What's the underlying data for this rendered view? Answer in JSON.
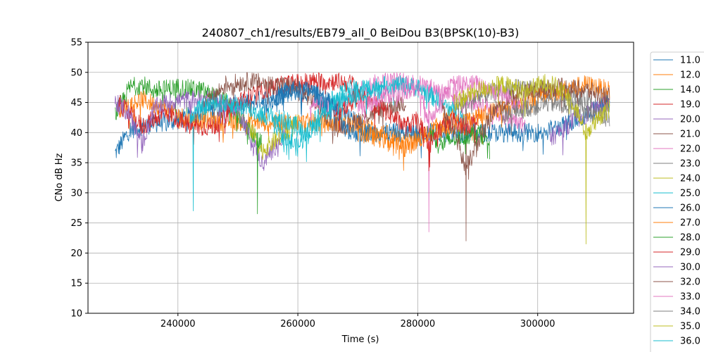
{
  "chart_data": {
    "type": "line",
    "title": "240807_ch1/results/EB79_all_0 BeiDou B3(BPSK(10)-B3)",
    "xlabel": "Time (s)",
    "ylabel": "CNo dB Hz",
    "xlim": [
      225000,
      316000
    ],
    "ylim": [
      10,
      55
    ],
    "x_ticks": [
      240000,
      260000,
      280000,
      300000
    ],
    "x_tick_labels": [
      "240000",
      "260000",
      "280000",
      "300000"
    ],
    "y_ticks": [
      10,
      15,
      20,
      25,
      30,
      35,
      40,
      45,
      50,
      55
    ],
    "y_tick_labels": [
      "10",
      "15",
      "20",
      "25",
      "30",
      "35",
      "40",
      "45",
      "50",
      "55"
    ],
    "grid": true,
    "legend_position": "right, outside plot",
    "series": [
      {
        "name": "11.0",
        "color": "#1f77b4",
        "x": [
          229500,
          232000,
          236000,
          240000,
          244000,
          248000,
          252000,
          256000,
          260000,
          264000,
          268000,
          272000
        ],
        "y": [
          36.5,
          40.5,
          41.5,
          42,
          43.5,
          44.5,
          45,
          46,
          47,
          46,
          43,
          40
        ]
      },
      {
        "name": "12.0",
        "color": "#ff7f0e",
        "x": [
          230000,
          234000,
          238000,
          242000,
          270000,
          274000,
          278000,
          282000,
          286000
        ],
        "y": [
          44,
          45.5,
          44,
          42,
          41.5,
          40,
          38.5,
          40,
          43
        ]
      },
      {
        "name": "14.0",
        "color": "#2ca02c",
        "x": [
          229500,
          232000,
          234000,
          236000,
          240000,
          244000,
          248000,
          250000,
          252000,
          254000
        ],
        "y": [
          43,
          47.5,
          48,
          47,
          47.5,
          47,
          45,
          43,
          40,
          38
        ]
      },
      {
        "name": "19.0",
        "color": "#d62728",
        "x": [
          230000,
          234000,
          238000,
          242000,
          246000,
          250000,
          254000,
          258000,
          262000,
          266000,
          270000
        ],
        "y": [
          45,
          41,
          43.5,
          41,
          41,
          45,
          47,
          48,
          48.5,
          48.5,
          48
        ]
      },
      {
        "name": "20.0",
        "color": "#9467bd",
        "x": [
          229500,
          232000,
          234000,
          236000,
          238000,
          242000,
          246000,
          250000,
          254000,
          258000
        ],
        "y": [
          45,
          43,
          38,
          44,
          45,
          45.5,
          45.5,
          44,
          35,
          40
        ]
      },
      {
        "name": "21.0",
        "color": "#8c564b",
        "x": [
          244000,
          248000,
          252000,
          256000,
          260000,
          264000,
          266000,
          270000,
          274000,
          278000
        ],
        "y": [
          44,
          48,
          48.5,
          48,
          47.5,
          44,
          41,
          42,
          44,
          45
        ]
      },
      {
        "name": "22.0",
        "color": "#e377c2",
        "x": [
          262000,
          266000,
          270000,
          274000,
          278000,
          282000,
          286000,
          290000,
          294000,
          298000
        ],
        "y": [
          45,
          44,
          47,
          48.5,
          48.5,
          47.5,
          46,
          45,
          43,
          41
        ]
      },
      {
        "name": "23.0",
        "color": "#7f7f7f",
        "x": [
          286000,
          290000,
          294000,
          298000,
          302000,
          306000,
          310000,
          312000
        ],
        "y": [
          44,
          46,
          47,
          47.5,
          47,
          46,
          45,
          44
        ]
      },
      {
        "name": "24.0",
        "color": "#bcbd22",
        "x": [
          252000,
          254000,
          256000,
          258000,
          260000
        ],
        "y": [
          41,
          37,
          38.5,
          40,
          41.5
        ]
      },
      {
        "name": "25.0",
        "color": "#17becf",
        "x": [
          256000,
          258000,
          260000,
          264000,
          268000,
          272000,
          276000,
          280000,
          284000,
          288000
        ],
        "y": [
          41,
          39,
          37.5,
          44,
          47,
          47.5,
          48,
          47.5,
          45,
          42
        ]
      },
      {
        "name": "26.0",
        "color": "#1f77b4",
        "x": [
          254000,
          258000,
          262000,
          266000,
          268000,
          300000,
          304000,
          308000,
          312000
        ],
        "y": [
          44,
          47,
          47,
          44.5,
          40,
          40,
          41,
          43,
          45
        ]
      },
      {
        "name": "27.0",
        "color": "#ff7f0e",
        "x": [
          270000,
          274000,
          278000,
          282000,
          300000,
          304000,
          308000,
          312000
        ],
        "y": [
          40,
          39,
          37.5,
          40,
          46,
          47,
          48,
          47
        ]
      },
      {
        "name": "28.0",
        "color": "#2ca02c",
        "x": [
          282000,
          284000,
          286000,
          290000,
          292000
        ],
        "y": [
          40,
          38,
          39,
          40,
          39
        ]
      },
      {
        "name": "29.0",
        "color": "#d62728",
        "x": [
          266000,
          270000,
          274000,
          278000,
          280000,
          282000,
          284000,
          286000,
          288000,
          290000
        ],
        "y": [
          43,
          46,
          44,
          41,
          42,
          38,
          41,
          42,
          41,
          42
        ]
      },
      {
        "name": "30.0",
        "color": "#9467bd",
        "x": [
          302000,
          306000,
          310000,
          312000
        ],
        "y": [
          39,
          42,
          44,
          45
        ]
      },
      {
        "name": "32.0",
        "color": "#8c564b",
        "x": [
          284000,
          286000,
          288000,
          290000,
          292000,
          296000,
          300000,
          304000,
          308000,
          312000
        ],
        "y": [
          44,
          41,
          34,
          38,
          43,
          46,
          47,
          47.5,
          47,
          46
        ]
      },
      {
        "name": "33.0",
        "color": "#e377c2",
        "x": [
          270000,
          274000,
          278000,
          280000,
          282000,
          284000,
          286000,
          290000,
          294000,
          298000
        ],
        "y": [
          44,
          46,
          47,
          47.5,
          42,
          46,
          48,
          48,
          46.5,
          44
        ]
      },
      {
        "name": "34.0",
        "color": "#7f7f7f",
        "x": [
          294000,
          298000,
          302000,
          306000,
          310000,
          312000
        ],
        "y": [
          43,
          44,
          45,
          44,
          43,
          42
        ]
      },
      {
        "name": "35.0",
        "color": "#bcbd22",
        "x": [
          286000,
          290000,
          294000,
          298000,
          302000,
          306000,
          308000,
          310000,
          312000
        ],
        "y": [
          45,
          47,
          48,
          47,
          48.5,
          45,
          40,
          42,
          44
        ]
      },
      {
        "name": "36.0",
        "color": "#17becf",
        "x": [
          242000,
          244000,
          246000,
          250000,
          254000,
          258000,
          262000,
          266000,
          270000,
          274000
        ],
        "y": [
          43,
          44,
          45,
          44.5,
          43,
          42,
          40,
          45,
          46.5,
          47
        ]
      }
    ],
    "dips": [
      {
        "series": "25.0",
        "x": 242500,
        "y": 27
      },
      {
        "series": "28.0",
        "x": 253200,
        "y": 26.5
      },
      {
        "series": "22.0",
        "x": 281800,
        "y": 23.5
      },
      {
        "series": "21.0",
        "x": 288000,
        "y": 22
      },
      {
        "series": "24.0",
        "x": 308000,
        "y": 21.5
      }
    ]
  }
}
